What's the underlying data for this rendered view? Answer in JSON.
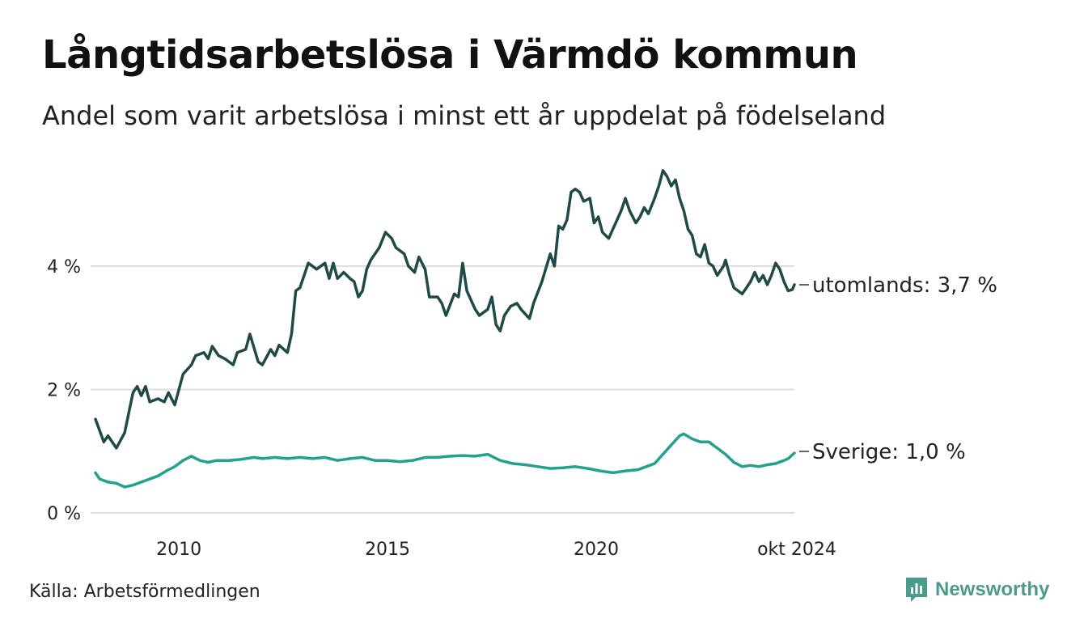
{
  "title": "Långtidsarbetslösa i Värmdö kommun",
  "subtitle": "Andel som varit arbetslösa i minst ett år uppdelat på födelseland",
  "source": "Källa: Arbetsförmedlingen",
  "brand": {
    "name": "Newsworthy",
    "icon": "newsworthy-logo-icon"
  },
  "colors": {
    "utomlands": "#1f4a45",
    "sverige": "#23a08e",
    "grid": "#dddddd",
    "brand": "#4a9b8a"
  },
  "chart_data": {
    "type": "line",
    "title": "Långtidsarbetslösa i Värmdö kommun",
    "xlabel": "",
    "ylabel": "",
    "xlim": [
      2008.0,
      2024.75
    ],
    "ylim": [
      0,
      5.6
    ],
    "y_ticks": [
      0,
      2,
      4
    ],
    "y_tick_labels": [
      "0 %",
      "2 %",
      "4 %"
    ],
    "x_ticks": [
      2010,
      2015,
      2020,
      2024.75
    ],
    "x_tick_labels": [
      "2010",
      "2015",
      "2020",
      "okt 2024"
    ],
    "series": [
      {
        "name": "utomlands",
        "label": "utomlands: 3,7 %",
        "points": [
          [
            2008.0,
            1.52
          ],
          [
            2008.2,
            1.15
          ],
          [
            2008.3,
            1.25
          ],
          [
            2008.5,
            1.05
          ],
          [
            2008.7,
            1.3
          ],
          [
            2008.9,
            1.95
          ],
          [
            2009.0,
            2.05
          ],
          [
            2009.1,
            1.9
          ],
          [
            2009.2,
            2.05
          ],
          [
            2009.3,
            1.8
          ],
          [
            2009.5,
            1.85
          ],
          [
            2009.65,
            1.8
          ],
          [
            2009.75,
            1.95
          ],
          [
            2009.9,
            1.75
          ],
          [
            2010.1,
            2.25
          ],
          [
            2010.3,
            2.4
          ],
          [
            2010.4,
            2.55
          ],
          [
            2010.6,
            2.6
          ],
          [
            2010.7,
            2.5
          ],
          [
            2010.8,
            2.7
          ],
          [
            2010.95,
            2.55
          ],
          [
            2011.1,
            2.5
          ],
          [
            2011.3,
            2.4
          ],
          [
            2011.4,
            2.6
          ],
          [
            2011.6,
            2.65
          ],
          [
            2011.7,
            2.9
          ],
          [
            2011.9,
            2.45
          ],
          [
            2012.0,
            2.4
          ],
          [
            2012.2,
            2.65
          ],
          [
            2012.3,
            2.55
          ],
          [
            2012.4,
            2.72
          ],
          [
            2012.6,
            2.6
          ],
          [
            2012.7,
            2.9
          ],
          [
            2012.8,
            3.6
          ],
          [
            2012.9,
            3.65
          ],
          [
            2013.1,
            4.05
          ],
          [
            2013.3,
            3.95
          ],
          [
            2013.5,
            4.05
          ],
          [
            2013.6,
            3.8
          ],
          [
            2013.7,
            4.05
          ],
          [
            2013.8,
            3.8
          ],
          [
            2013.95,
            3.9
          ],
          [
            2014.1,
            3.8
          ],
          [
            2014.2,
            3.75
          ],
          [
            2014.3,
            3.5
          ],
          [
            2014.4,
            3.6
          ],
          [
            2014.5,
            3.95
          ],
          [
            2014.6,
            4.1
          ],
          [
            2014.8,
            4.3
          ],
          [
            2014.95,
            4.55
          ],
          [
            2015.1,
            4.45
          ],
          [
            2015.2,
            4.3
          ],
          [
            2015.4,
            4.2
          ],
          [
            2015.5,
            4.0
          ],
          [
            2015.65,
            3.9
          ],
          [
            2015.75,
            4.15
          ],
          [
            2015.9,
            3.95
          ],
          [
            2016.0,
            3.5
          ],
          [
            2016.2,
            3.5
          ],
          [
            2016.3,
            3.4
          ],
          [
            2016.4,
            3.2
          ],
          [
            2016.6,
            3.55
          ],
          [
            2016.7,
            3.5
          ],
          [
            2016.8,
            4.05
          ],
          [
            2016.9,
            3.6
          ],
          [
            2017.1,
            3.3
          ],
          [
            2017.2,
            3.2
          ],
          [
            2017.3,
            3.25
          ],
          [
            2017.4,
            3.3
          ],
          [
            2017.5,
            3.5
          ],
          [
            2017.6,
            3.05
          ],
          [
            2017.7,
            2.95
          ],
          [
            2017.8,
            3.2
          ],
          [
            2017.95,
            3.35
          ],
          [
            2018.1,
            3.4
          ],
          [
            2018.2,
            3.3
          ],
          [
            2018.4,
            3.15
          ],
          [
            2018.5,
            3.4
          ],
          [
            2018.7,
            3.75
          ],
          [
            2018.9,
            4.2
          ],
          [
            2019.0,
            4.0
          ],
          [
            2019.1,
            4.65
          ],
          [
            2019.2,
            4.6
          ],
          [
            2019.3,
            4.75
          ],
          [
            2019.4,
            5.2
          ],
          [
            2019.5,
            5.25
          ],
          [
            2019.6,
            5.2
          ],
          [
            2019.7,
            5.05
          ],
          [
            2019.85,
            5.1
          ],
          [
            2019.95,
            4.7
          ],
          [
            2020.05,
            4.8
          ],
          [
            2020.15,
            4.55
          ],
          [
            2020.3,
            4.45
          ],
          [
            2020.4,
            4.6
          ],
          [
            2020.5,
            4.75
          ],
          [
            2020.6,
            4.9
          ],
          [
            2020.7,
            5.1
          ],
          [
            2020.8,
            4.9
          ],
          [
            2020.95,
            4.7
          ],
          [
            2021.05,
            4.8
          ],
          [
            2021.15,
            4.95
          ],
          [
            2021.25,
            4.85
          ],
          [
            2021.4,
            5.1
          ],
          [
            2021.5,
            5.3
          ],
          [
            2021.6,
            5.55
          ],
          [
            2021.7,
            5.45
          ],
          [
            2021.8,
            5.3
          ],
          [
            2021.9,
            5.4
          ],
          [
            2022.0,
            5.1
          ],
          [
            2022.1,
            4.9
          ],
          [
            2022.2,
            4.6
          ],
          [
            2022.3,
            4.5
          ],
          [
            2022.4,
            4.2
          ],
          [
            2022.5,
            4.15
          ],
          [
            2022.6,
            4.35
          ],
          [
            2022.7,
            4.05
          ],
          [
            2022.8,
            4.0
          ],
          [
            2022.9,
            3.85
          ],
          [
            2023.05,
            4.0
          ],
          [
            2023.1,
            4.1
          ],
          [
            2023.2,
            3.85
          ],
          [
            2023.3,
            3.65
          ],
          [
            2023.4,
            3.6
          ],
          [
            2023.5,
            3.55
          ],
          [
            2023.6,
            3.65
          ],
          [
            2023.7,
            3.75
          ],
          [
            2023.8,
            3.9
          ],
          [
            2023.9,
            3.75
          ],
          [
            2024.0,
            3.85
          ],
          [
            2024.1,
            3.7
          ],
          [
            2024.2,
            3.85
          ],
          [
            2024.3,
            4.05
          ],
          [
            2024.4,
            3.95
          ],
          [
            2024.5,
            3.75
          ],
          [
            2024.6,
            3.6
          ],
          [
            2024.7,
            3.62
          ],
          [
            2024.75,
            3.7
          ]
        ]
      },
      {
        "name": "Sverige",
        "label": "Sverige: 1,0 %",
        "points": [
          [
            2008.0,
            0.65
          ],
          [
            2008.1,
            0.55
          ],
          [
            2008.3,
            0.5
          ],
          [
            2008.5,
            0.48
          ],
          [
            2008.7,
            0.42
          ],
          [
            2008.9,
            0.45
          ],
          [
            2009.1,
            0.5
          ],
          [
            2009.3,
            0.55
          ],
          [
            2009.5,
            0.6
          ],
          [
            2009.7,
            0.68
          ],
          [
            2009.9,
            0.75
          ],
          [
            2010.1,
            0.85
          ],
          [
            2010.3,
            0.92
          ],
          [
            2010.5,
            0.85
          ],
          [
            2010.7,
            0.82
          ],
          [
            2010.9,
            0.85
          ],
          [
            2011.2,
            0.85
          ],
          [
            2011.5,
            0.87
          ],
          [
            2011.8,
            0.9
          ],
          [
            2012.0,
            0.88
          ],
          [
            2012.3,
            0.9
          ],
          [
            2012.6,
            0.88
          ],
          [
            2012.9,
            0.9
          ],
          [
            2013.2,
            0.88
          ],
          [
            2013.5,
            0.9
          ],
          [
            2013.8,
            0.85
          ],
          [
            2014.1,
            0.88
          ],
          [
            2014.4,
            0.9
          ],
          [
            2014.7,
            0.85
          ],
          [
            2015.0,
            0.85
          ],
          [
            2015.3,
            0.83
          ],
          [
            2015.6,
            0.85
          ],
          [
            2015.9,
            0.9
          ],
          [
            2016.2,
            0.9
          ],
          [
            2016.5,
            0.92
          ],
          [
            2016.8,
            0.93
          ],
          [
            2017.1,
            0.92
          ],
          [
            2017.4,
            0.95
          ],
          [
            2017.7,
            0.85
          ],
          [
            2018.0,
            0.8
          ],
          [
            2018.3,
            0.78
          ],
          [
            2018.6,
            0.75
          ],
          [
            2018.9,
            0.72
          ],
          [
            2019.2,
            0.73
          ],
          [
            2019.5,
            0.75
          ],
          [
            2019.8,
            0.72
          ],
          [
            2020.1,
            0.68
          ],
          [
            2020.4,
            0.65
          ],
          [
            2020.7,
            0.68
          ],
          [
            2021.0,
            0.7
          ],
          [
            2021.2,
            0.75
          ],
          [
            2021.4,
            0.8
          ],
          [
            2021.6,
            0.95
          ],
          [
            2021.8,
            1.1
          ],
          [
            2022.0,
            1.25
          ],
          [
            2022.1,
            1.28
          ],
          [
            2022.3,
            1.2
          ],
          [
            2022.5,
            1.15
          ],
          [
            2022.7,
            1.15
          ],
          [
            2022.9,
            1.05
          ],
          [
            2023.1,
            0.95
          ],
          [
            2023.3,
            0.82
          ],
          [
            2023.5,
            0.75
          ],
          [
            2023.7,
            0.77
          ],
          [
            2023.9,
            0.75
          ],
          [
            2024.1,
            0.78
          ],
          [
            2024.3,
            0.8
          ],
          [
            2024.5,
            0.85
          ],
          [
            2024.6,
            0.88
          ],
          [
            2024.75,
            0.97
          ]
        ]
      }
    ]
  }
}
